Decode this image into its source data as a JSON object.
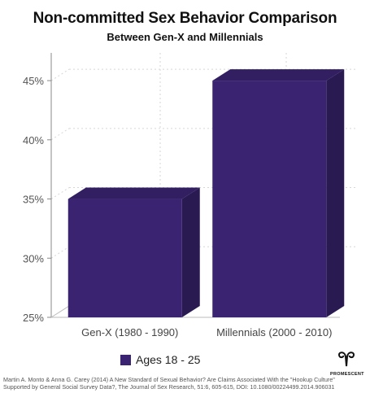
{
  "chart_data": {
    "type": "bar",
    "title": "Non-committed Sex Behavior Comparison",
    "subtitle": "Between Gen-X and Millennials",
    "categories": [
      "Gen-X (1980 - 1990)",
      "Millennials (2000 - 2010)"
    ],
    "series": [
      {
        "name": "Ages 18 - 25",
        "values": [
          35,
          45
        ],
        "color": "#3a2472"
      }
    ],
    "ylim": [
      25,
      47
    ],
    "yticks": [
      25,
      30,
      35,
      40,
      45
    ],
    "ytick_labels": [
      "25%",
      "30%",
      "35%",
      "40%",
      "45%"
    ],
    "xlabel": "",
    "ylabel": "",
    "grid": true,
    "legend_position": "bottom-left",
    "style": "3d"
  },
  "logo": {
    "icon": "promescent-logo-icon",
    "text": "PROMESCENT"
  },
  "citation": {
    "line1": "Martin A. Monto & Anna G. Carey (2014) A New Standard of Sexual Behavior? Are Claims Associated With the \"Hookup Culture\"",
    "line2": "Supported by General Social Survey Data?, The Journal of Sex Research, 51:6, 605-615, DOI: 10.1080/00224499.2014.906031"
  }
}
